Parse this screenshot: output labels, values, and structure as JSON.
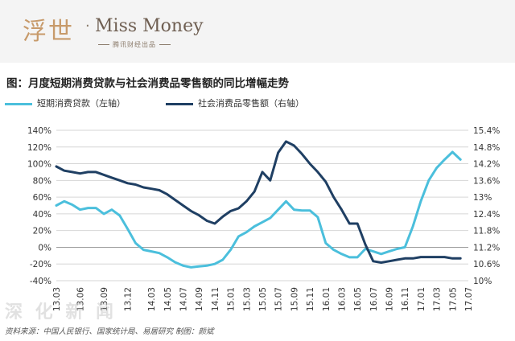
{
  "header": {
    "logo_cn": "浮世",
    "logo_dot": "·",
    "logo_en": "Miss Money",
    "logo_sub": "腾讯财经出品"
  },
  "title": "图：月度短期消费贷款与社会消费品零售额的同比增幅走势",
  "legend": {
    "series1": "短期消费贷款（左轴）",
    "series2": "社会消费品零售额（右轴）"
  },
  "colors": {
    "series1": "#4bbfdc",
    "series2": "#1f3f63"
  },
  "watermark": "深 化 新 闻",
  "source": "资料来源：中国人民银行、国家统计局、易居研究      制图：颜斌",
  "chart_data": {
    "type": "line",
    "x_labels": [
      "13.03",
      "13.06",
      "13.09",
      "13.12",
      "14.03",
      "14.05",
      "14.07",
      "14.09",
      "14.11",
      "15.01",
      "15.03",
      "15.05",
      "15.07",
      "15.09",
      "15.11",
      "16.01",
      "16.03",
      "16.05",
      "16.07",
      "16.09",
      "16.11",
      "17.01",
      "17.03",
      "17.05",
      "17.07"
    ],
    "y_left": {
      "min": -40,
      "max": 140,
      "step": 20,
      "ticks": [
        "140%",
        "120%",
        "100%",
        "80%",
        "60%",
        "40%",
        "20%",
        "0%",
        "-20%",
        "-40%"
      ]
    },
    "y_right": {
      "min": 10,
      "max": 15.4,
      "ticks": [
        "15.4%",
        "14.8%",
        "14.2%",
        "13.6%",
        "13%",
        "12.4%",
        "11.8%",
        "11.2%",
        "10.6%",
        "10%"
      ]
    },
    "series": [
      {
        "name": "短期消费贷款（左轴）",
        "axis": "left",
        "points": [
          [
            "13.03",
            50
          ],
          [
            "13.04",
            55
          ],
          [
            "13.05",
            51
          ],
          [
            "13.06",
            45
          ],
          [
            "13.07",
            47
          ],
          [
            "13.08",
            47
          ],
          [
            "13.09",
            40
          ],
          [
            "13.10",
            45
          ],
          [
            "13.11",
            38
          ],
          [
            "13.12",
            22
          ],
          [
            "14.01",
            5
          ],
          [
            "14.02",
            -3
          ],
          [
            "14.03",
            -5
          ],
          [
            "14.04",
            -7
          ],
          [
            "14.05",
            -12
          ],
          [
            "14.06",
            -18
          ],
          [
            "14.07",
            -22
          ],
          [
            "14.08",
            -24
          ],
          [
            "14.09",
            -23
          ],
          [
            "14.10",
            -22
          ],
          [
            "14.11",
            -20
          ],
          [
            "14.12",
            -15
          ],
          [
            "15.01",
            -3
          ],
          [
            "15.02",
            13
          ],
          [
            "15.03",
            18
          ],
          [
            "15.04",
            25
          ],
          [
            "15.05",
            30
          ],
          [
            "15.06",
            35
          ],
          [
            "15.07",
            45
          ],
          [
            "15.08",
            55
          ],
          [
            "15.09",
            45
          ],
          [
            "15.10",
            44
          ],
          [
            "15.11",
            44
          ],
          [
            "15.12",
            36
          ],
          [
            "16.01",
            5
          ],
          [
            "16.02",
            -3
          ],
          [
            "16.03",
            -8
          ],
          [
            "16.04",
            -12
          ],
          [
            "16.05",
            -12
          ],
          [
            "16.06",
            -2
          ],
          [
            "16.07",
            -5
          ],
          [
            "16.08",
            -8
          ],
          [
            "16.09",
            -5
          ],
          [
            "16.10",
            -2
          ],
          [
            "16.11",
            0
          ],
          [
            "16.12",
            25
          ],
          [
            "17.01",
            55
          ],
          [
            "17.02",
            80
          ],
          [
            "17.03",
            95
          ],
          [
            "17.04",
            105
          ],
          [
            "17.05",
            114
          ],
          [
            "17.06",
            105
          ]
        ]
      },
      {
        "name": "社会消费品零售额（右轴）",
        "axis": "right",
        "points": [
          [
            "13.03",
            14.1
          ],
          [
            "13.04",
            13.95
          ],
          [
            "13.05",
            13.9
          ],
          [
            "13.06",
            13.85
          ],
          [
            "13.07",
            13.9
          ],
          [
            "13.08",
            13.9
          ],
          [
            "13.09",
            13.8
          ],
          [
            "13.10",
            13.7
          ],
          [
            "13.11",
            13.6
          ],
          [
            "13.12",
            13.5
          ],
          [
            "14.01",
            13.45
          ],
          [
            "14.02",
            13.35
          ],
          [
            "14.03",
            13.3
          ],
          [
            "14.04",
            13.25
          ],
          [
            "14.05",
            13.1
          ],
          [
            "14.06",
            12.9
          ],
          [
            "14.07",
            12.7
          ],
          [
            "14.08",
            12.5
          ],
          [
            "14.09",
            12.35
          ],
          [
            "14.10",
            12.15
          ],
          [
            "14.11",
            12.05
          ],
          [
            "14.12",
            12.3
          ],
          [
            "15.01",
            12.5
          ],
          [
            "15.02",
            12.6
          ],
          [
            "15.03",
            12.85
          ],
          [
            "15.04",
            13.2
          ],
          [
            "15.05",
            13.9
          ],
          [
            "15.06",
            13.6
          ],
          [
            "15.07",
            14.6
          ],
          [
            "15.08",
            15.0
          ],
          [
            "15.09",
            14.85
          ],
          [
            "15.10",
            14.55
          ],
          [
            "15.11",
            14.2
          ],
          [
            "15.12",
            13.9
          ],
          [
            "16.01",
            13.55
          ],
          [
            "16.02",
            13.0
          ],
          [
            "16.03",
            12.55
          ],
          [
            "16.04",
            12.05
          ],
          [
            "16.05",
            12.05
          ],
          [
            "16.06",
            11.3
          ],
          [
            "16.07",
            10.7
          ],
          [
            "16.08",
            10.65
          ],
          [
            "16.09",
            10.7
          ],
          [
            "16.10",
            10.75
          ],
          [
            "16.11",
            10.8
          ],
          [
            "16.12",
            10.8
          ],
          [
            "17.01",
            10.85
          ],
          [
            "17.02",
            10.85
          ],
          [
            "17.03",
            10.85
          ],
          [
            "17.04",
            10.85
          ],
          [
            "17.05",
            10.8
          ],
          [
            "17.06",
            10.8
          ]
        ]
      }
    ]
  }
}
